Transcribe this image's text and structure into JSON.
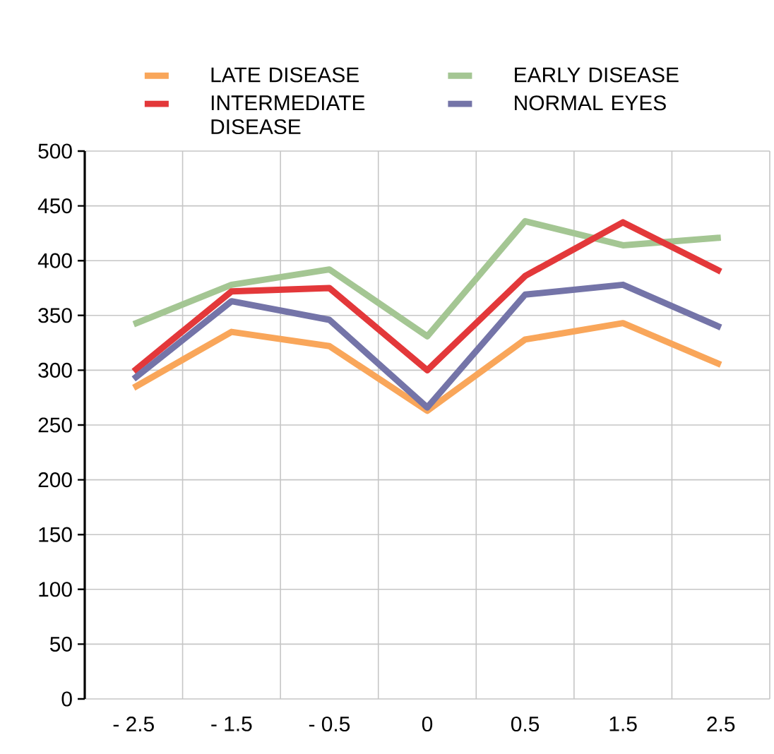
{
  "chart_data": {
    "type": "line",
    "categories": [
      "- 2.5",
      "- 1.5",
      "- 0.5",
      "0",
      "0.5",
      "1.5",
      "2.5"
    ],
    "series": [
      {
        "name": "LATE DISEASE",
        "color": "#f9a65a",
        "values": [
          284,
          335,
          322,
          263,
          328,
          343,
          305
        ]
      },
      {
        "name": "EARLY DISEASE",
        "color": "#a4c693",
        "values": [
          342,
          378,
          392,
          331,
          436,
          414,
          421
        ]
      },
      {
        "name": "INTERMEDIATE DISEASE",
        "color": "#e3383a",
        "values": [
          299,
          372,
          375,
          300,
          386,
          435,
          390
        ]
      },
      {
        "name": "NORMAL EYES",
        "color": "#7474a8",
        "values": [
          292,
          363,
          346,
          266,
          369,
          378,
          339
        ]
      }
    ],
    "ylim": [
      0,
      500
    ],
    "yticks": [
      0,
      50,
      100,
      150,
      200,
      250,
      300,
      350,
      400,
      450,
      500
    ],
    "grid": true,
    "legend": "top",
    "marker": "none",
    "line_style": "solid"
  }
}
